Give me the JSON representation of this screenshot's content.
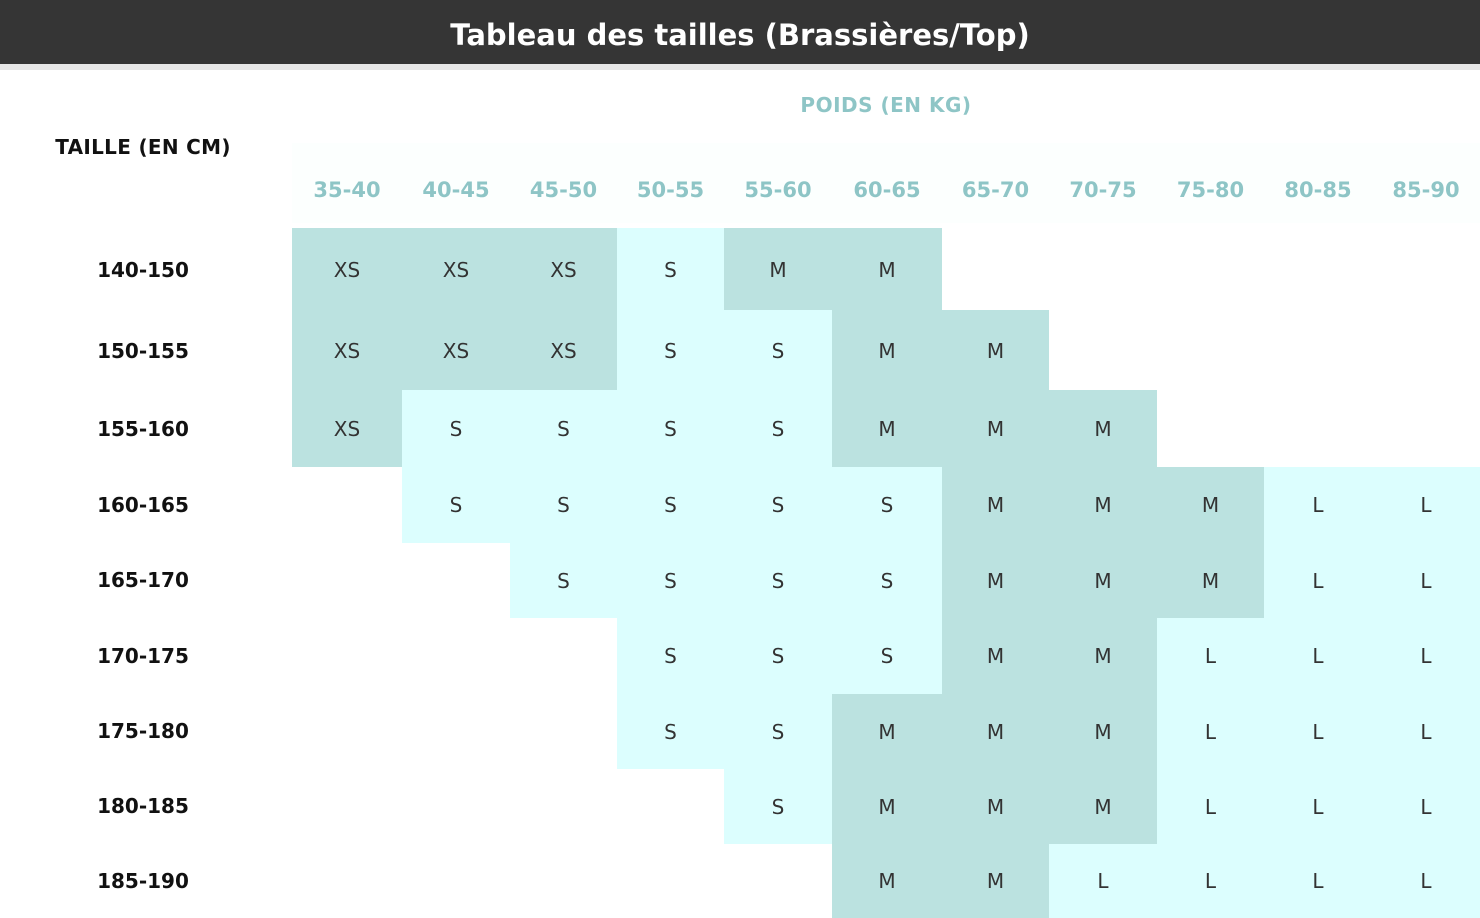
{
  "title": "Tableau des tailles (Brassières/Top)",
  "column_axis_label": "POIDS (EN KG)",
  "row_axis_label": "TAILLE (EN CM)",
  "colors": {
    "header_bg": "#353535",
    "accent": "#8ec5c6",
    "dark_cell": "#bbe2e0",
    "light_cell": "#dcfefe"
  },
  "columns": [
    "35-40",
    "40-45",
    "45-50",
    "50-55",
    "55-60",
    "60-65",
    "65-70",
    "70-75",
    "75-80",
    "80-85",
    "85-90"
  ],
  "rows": [
    {
      "label": "140-150",
      "cells": [
        "XS",
        "XS",
        "XS",
        "S",
        "M",
        "M",
        "",
        "",
        "",
        "",
        ""
      ]
    },
    {
      "label": "150-155",
      "cells": [
        "XS",
        "XS",
        "XS",
        "S",
        "S",
        "M",
        "M",
        "",
        "",
        "",
        ""
      ]
    },
    {
      "label": "155-160",
      "cells": [
        "XS",
        "S",
        "S",
        "S",
        "S",
        "M",
        "M",
        "M",
        "",
        "",
        ""
      ]
    },
    {
      "label": "160-165",
      "cells": [
        "",
        "S",
        "S",
        "S",
        "S",
        "S",
        "M",
        "M",
        "M",
        "L",
        "L"
      ]
    },
    {
      "label": "165-170",
      "cells": [
        "",
        "",
        "S",
        "S",
        "S",
        "S",
        "M",
        "M",
        "M",
        "L",
        "L"
      ]
    },
    {
      "label": "170-175",
      "cells": [
        "",
        "",
        "",
        "S",
        "S",
        "S",
        "M",
        "M",
        "L",
        "L",
        "L"
      ]
    },
    {
      "label": "175-180",
      "cells": [
        "",
        "",
        "",
        "S",
        "S",
        "M",
        "M",
        "M",
        "L",
        "L",
        "L"
      ]
    },
    {
      "label": "180-185",
      "cells": [
        "",
        "",
        "",
        "",
        "S",
        "M",
        "M",
        "M",
        "L",
        "L",
        "L"
      ]
    },
    {
      "label": "185-190",
      "cells": [
        "",
        "",
        "",
        "",
        "",
        "M",
        "M",
        "L",
        "L",
        "L",
        "L"
      ]
    }
  ]
}
